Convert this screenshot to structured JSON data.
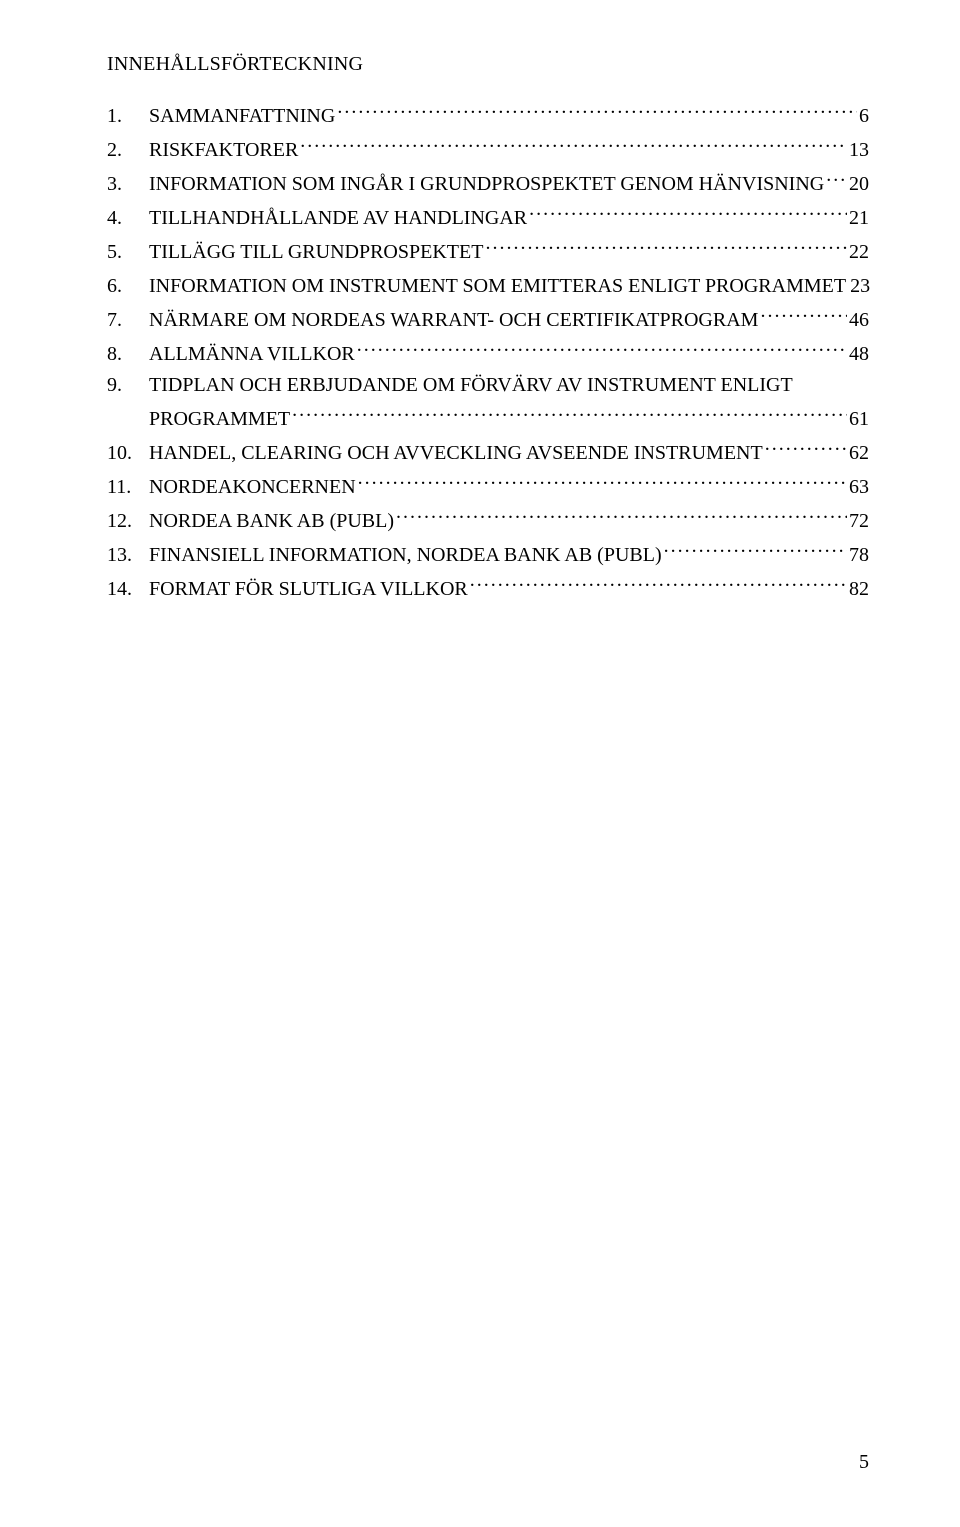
{
  "title": "INNEHÅLLSFÖRTECKNING",
  "page_number": "5",
  "toc": [
    {
      "num": "1.",
      "label": "SAMMANFATTNING",
      "page": "6"
    },
    {
      "num": "2.",
      "label": "RISKFAKTORER",
      "page": "13"
    },
    {
      "num": "3.",
      "label": "INFORMATION SOM INGÅR I GRUNDPROSPEKTET GENOM HÄNVISNING",
      "page": "20"
    },
    {
      "num": "4.",
      "label": "TILLHANDHÅLLANDE AV HANDLINGAR",
      "page": "21"
    },
    {
      "num": "5.",
      "label": "TILLÄGG TILL GRUNDPROSPEKTET",
      "page": "22"
    },
    {
      "num": "6.",
      "label": "INFORMATION OM INSTRUMENT SOM EMITTERAS ENLIGT PROGRAMMET",
      "page": "23"
    },
    {
      "num": "7.",
      "label": "NÄRMARE OM NORDEAS WARRANT- OCH CERTIFIKATPROGRAM",
      "page": "46"
    },
    {
      "num": "8.",
      "label": "ALLMÄNNA VILLKOR",
      "page": "48"
    },
    {
      "num": "9.",
      "label_line1": "TIDPLAN OCH ERBJUDANDE OM FÖRVÄRV AV INSTRUMENT ENLIGT",
      "label_line2": "PROGRAMMET",
      "page": "61",
      "wrapped": true
    },
    {
      "num": "10.",
      "label": "HANDEL, CLEARING OCH AVVECKLING AVSEENDE INSTRUMENT",
      "page": "62"
    },
    {
      "num": "11.",
      "label": "NORDEAKONCERNEN",
      "page": "63"
    },
    {
      "num": "12.",
      "label": "NORDEA BANK AB (PUBL)",
      "page": "72"
    },
    {
      "num": "13.",
      "label": "FINANSIELL INFORMATION, NORDEA BANK AB (PUBL)",
      "page": "78"
    },
    {
      "num": "14.",
      "label": "FORMAT FÖR SLUTLIGA VILLKOR",
      "page": "82"
    }
  ]
}
